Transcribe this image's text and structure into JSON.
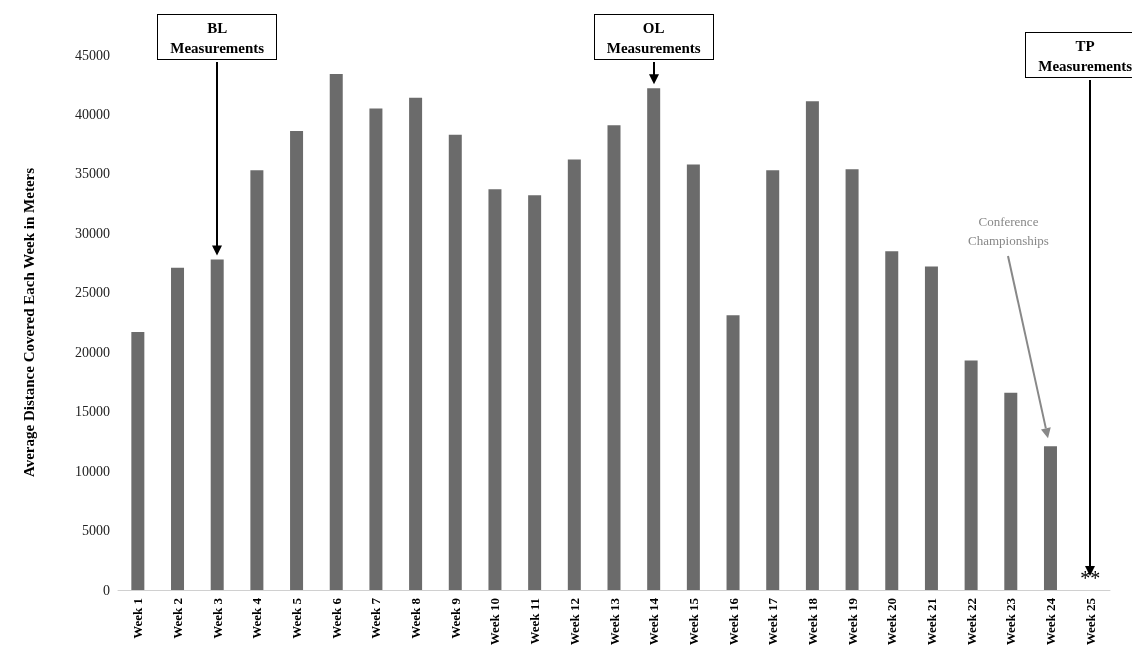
{
  "chart_data": {
    "type": "bar",
    "ylabel": "Average Distance Covered Each Week in Meters",
    "categories": [
      "Week 1",
      "Week 2",
      "Week 3",
      "Week 4",
      "Week 5",
      "Week 6",
      "Week 7",
      "Week 8",
      "Week 9",
      "Week 10",
      "Week 11",
      "Week 12",
      "Week 13",
      "Week 14",
      "Week 15",
      "Week 16",
      "Week 17",
      "Week 18",
      "Week 19",
      "Week 20",
      "Week 21",
      "Week 22",
      "Week 23",
      "Week 24",
      "Week 25"
    ],
    "values": [
      21700,
      27100,
      27800,
      35300,
      38600,
      43400,
      40500,
      41400,
      38300,
      33700,
      33200,
      36200,
      39100,
      42200,
      35800,
      23100,
      35300,
      41100,
      35400,
      28500,
      27200,
      19300,
      16600,
      12100,
      null
    ],
    "color": "#6b6b6b",
    "ylim": [
      0,
      45000
    ],
    "yticks": [
      0,
      5000,
      10000,
      15000,
      20000,
      25000,
      30000,
      35000,
      40000,
      45000
    ],
    "annotations": [
      "BL\nMeasurements",
      "OL\nMeasurements",
      "TP\nMeasurements",
      "Conference\nChampionships",
      "**"
    ]
  }
}
